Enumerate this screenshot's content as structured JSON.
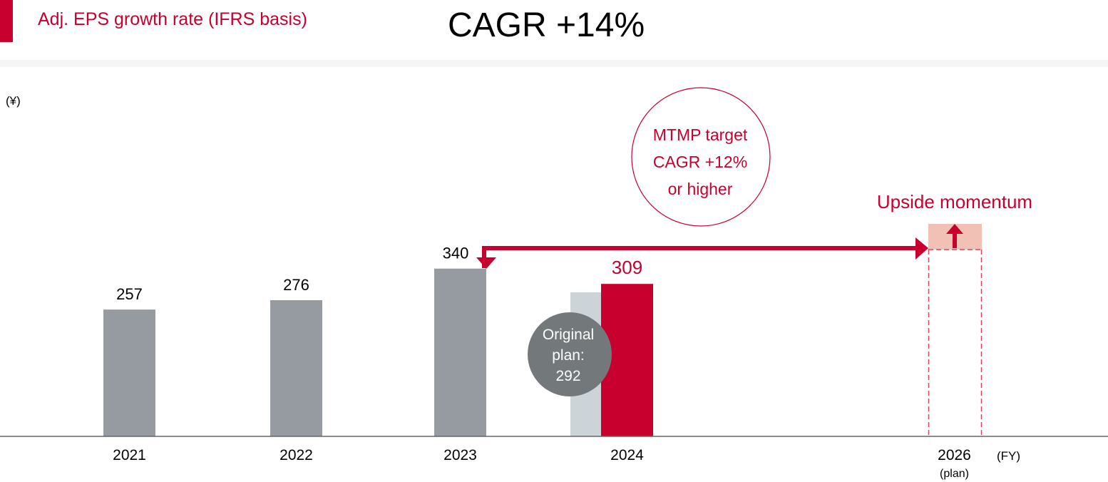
{
  "header": {
    "title": "Adj. EPS growth rate (IFRS basis)",
    "headline": "CAGR +14%"
  },
  "chart_data": {
    "type": "bar",
    "title": "Adj. EPS growth rate (IFRS basis)",
    "ylabel": "(¥)",
    "xlabel": "(FY)",
    "ylim": [
      0,
      420
    ],
    "grid": false,
    "categories": [
      "2021",
      "2022",
      "2023",
      "2024",
      "2026"
    ],
    "category_sublabels": {
      "2026": "(plan)"
    },
    "series": [
      {
        "values": [
          257,
          276,
          340,
          309,
          null
        ],
        "labels": [
          "257",
          "276",
          "340",
          "309",
          ""
        ]
      }
    ],
    "original_plan": {
      "category": "2024",
      "value": 292,
      "label_lines": [
        "Original",
        "plan:",
        "292"
      ]
    },
    "annotations": {
      "target_circle": [
        "MTMP target",
        "CAGR +12%",
        "or higher"
      ],
      "upside": "Upside momentum"
    },
    "colors": {
      "actual": "#959ba0",
      "highlight": "#c8002d",
      "original_plan_bar": "#cdd4d8",
      "original_plan_circle": "#73787b",
      "upside_fill": "#f2c1b6",
      "axis": "#666666"
    }
  }
}
